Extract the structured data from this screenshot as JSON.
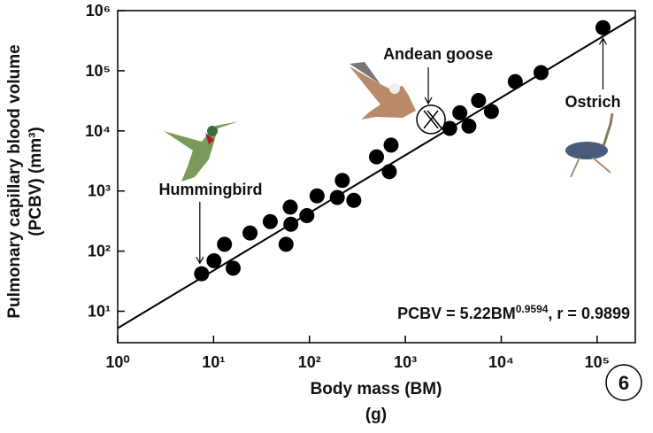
{
  "chart_data": {
    "type": "scatter",
    "x_label": "Body mass (BM)",
    "x_unit": "(g)",
    "y_label": "Pulmonary capillary blood volume",
    "y_unit": "(PCBV) (mm³)",
    "log_x": true,
    "log_y": true,
    "xlim": [
      1,
      250000
    ],
    "ylim": [
      3,
      1000000
    ],
    "xticks": [
      {
        "value": 1,
        "label": "10⁰"
      },
      {
        "value": 10,
        "label": "10¹"
      },
      {
        "value": 100,
        "label": "10²"
      },
      {
        "value": 1000,
        "label": "10³"
      },
      {
        "value": 10000,
        "label": "10⁴"
      },
      {
        "value": 100000,
        "label": "10⁵"
      }
    ],
    "yticks": [
      {
        "value": 10,
        "label": "10¹"
      },
      {
        "value": 100,
        "label": "10²"
      },
      {
        "value": 1000,
        "label": "10³"
      },
      {
        "value": 10000,
        "label": "10⁴"
      },
      {
        "value": 100000,
        "label": "10⁵"
      },
      {
        "value": 1000000,
        "label": "10⁶"
      }
    ],
    "color": "#000000",
    "x": [
      7.5,
      10.1,
      13,
      16,
      24,
      39,
      57,
      63,
      64,
      94,
      120,
      195,
      220,
      290,
      500,
      710,
      680,
      2900,
      3700,
      4600,
      5800,
      7900,
      14000,
      26000,
      115000
    ],
    "values": [
      42,
      69,
      130,
      52,
      200,
      310,
      130,
      540,
      280,
      390,
      830,
      780,
      1500,
      700,
      3700,
      5800,
      2100,
      11000,
      20000,
      12000,
      32000,
      21000,
      66000,
      93000,
      520000
    ],
    "highlight": {
      "name": "Andean goose",
      "x": 1850,
      "y": 15500
    },
    "annotations": [
      "Hummingbird",
      "Ostrich"
    ],
    "fit": {
      "a": 5.22,
      "b": 0.9594
    },
    "equation": {
      "prefix": "PCBV = 5.22BM",
      "exponent": "0.9594",
      "suffix": ", r = 0.9899"
    },
    "panel_label": "6"
  }
}
